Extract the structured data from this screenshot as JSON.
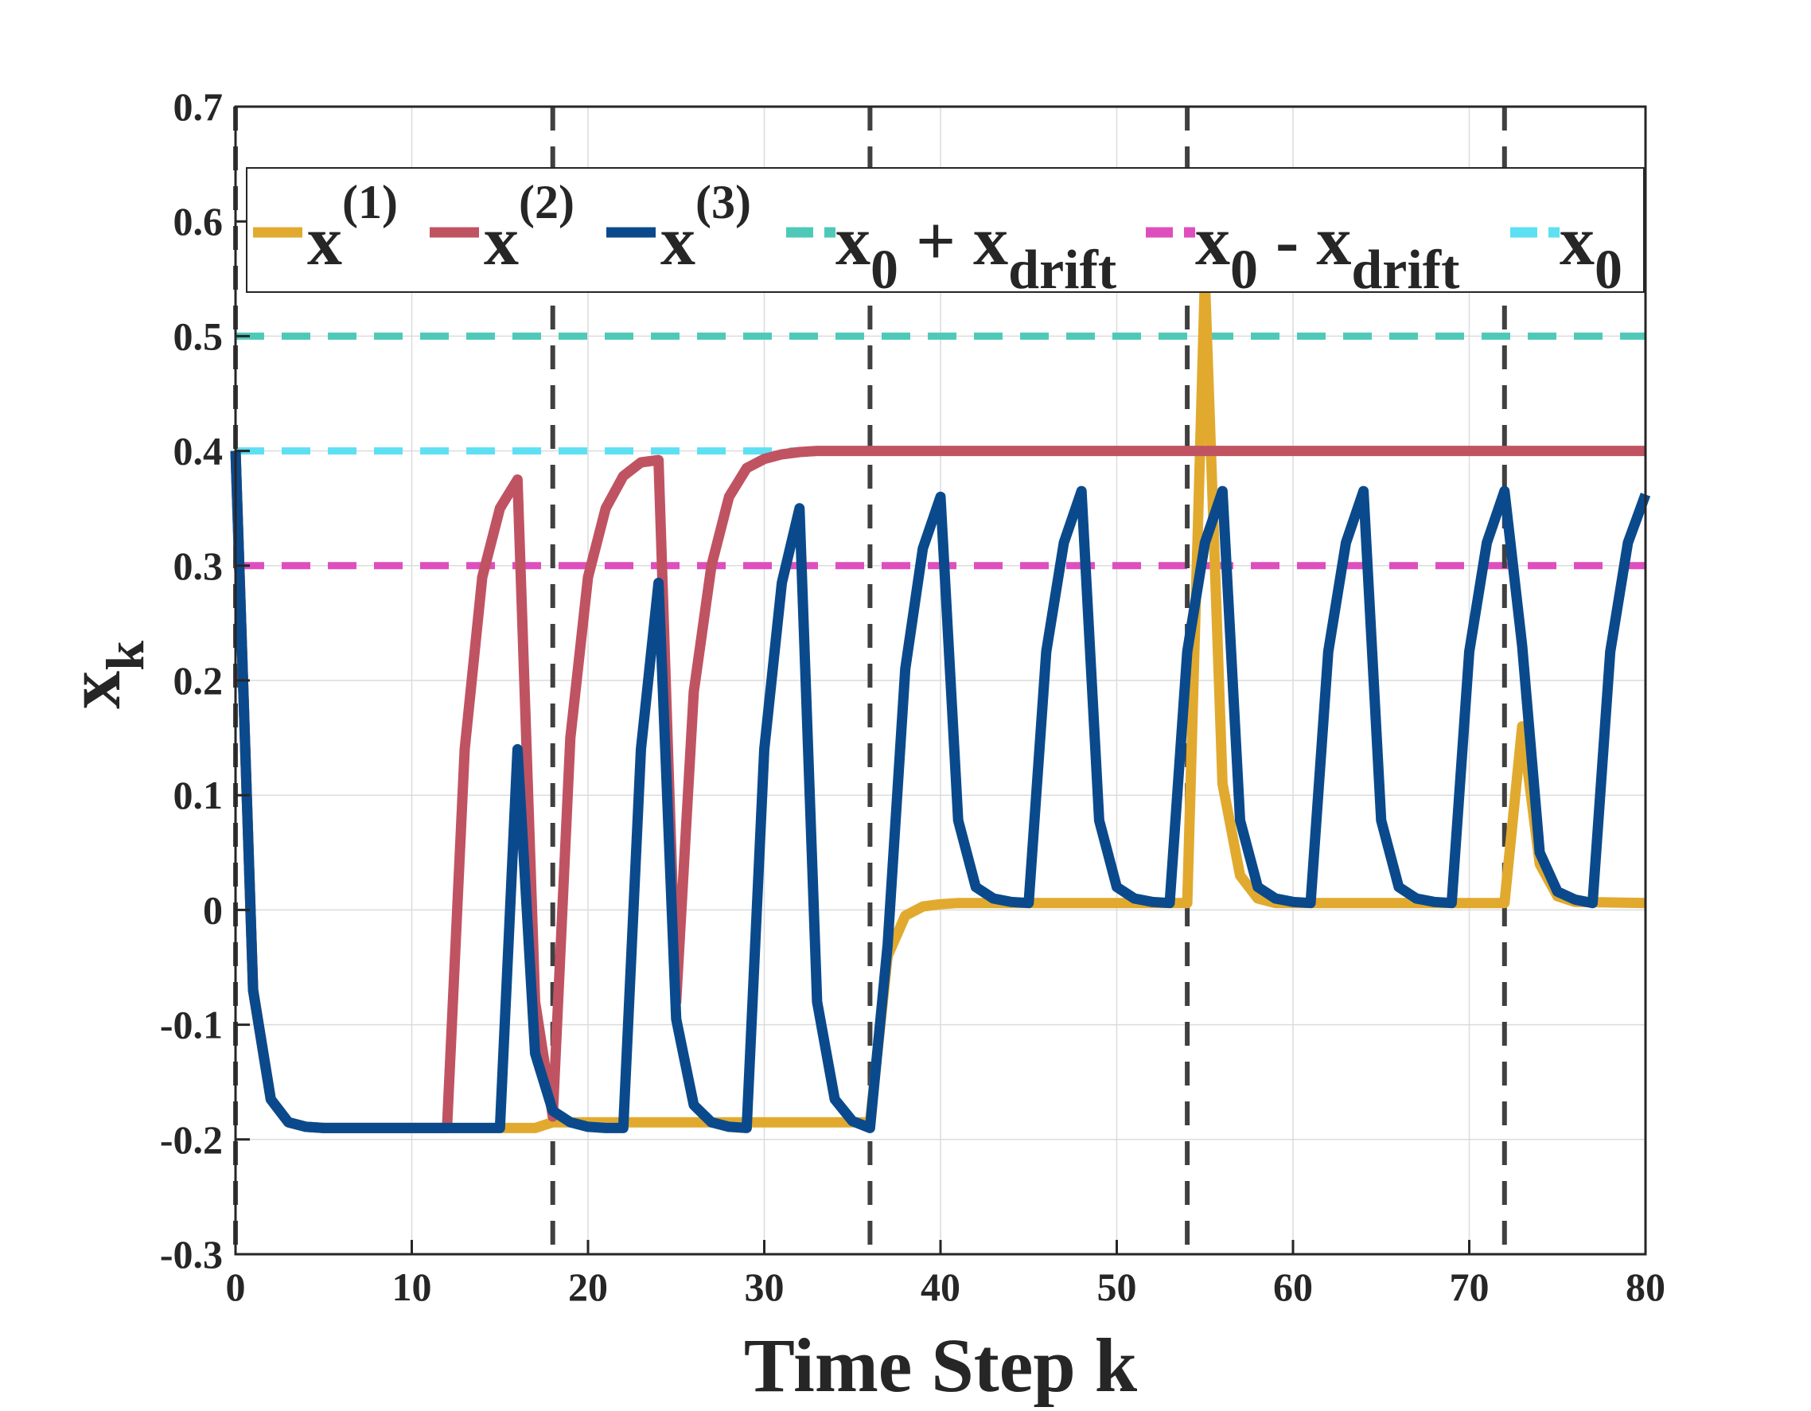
{
  "chart_data": {
    "type": "line",
    "title": "",
    "xlabel": "Time Step k",
    "ylabel": {
      "base": "x",
      "sub": "k"
    },
    "xlim": [
      0,
      80
    ],
    "ylim": [
      -0.3,
      0.7
    ],
    "xticks": [
      0,
      10,
      20,
      30,
      40,
      50,
      60,
      70,
      80
    ],
    "yticks": [
      -0.3,
      -0.2,
      -0.1,
      0,
      0.1,
      0.2,
      0.3,
      0.4,
      0.5,
      0.6,
      0.7
    ],
    "xtick_labels": [
      "0",
      "10",
      "20",
      "30",
      "40",
      "50",
      "60",
      "70",
      "80"
    ],
    "ytick_labels": [
      "-0.3",
      "-0.2",
      "-0.1",
      "0",
      "0.1",
      "0.2",
      "0.3",
      "0.4",
      "0.5",
      "0.6",
      "0.7"
    ],
    "grid": true,
    "legend_position": "top",
    "vertical_lines": [
      0,
      18,
      36,
      54,
      72
    ],
    "vertical_line_color": "#404040",
    "reference_lines": [
      {
        "name": "x0 + xdrift",
        "y": 0.5,
        "color": "#4ec9b8"
      },
      {
        "name": "x0 - xdrift",
        "y": 0.3,
        "color": "#de4fbd"
      },
      {
        "name": "x0",
        "y": 0.4,
        "color": "#5ee0f3"
      }
    ],
    "legend": [
      {
        "key": "x1",
        "base": "x",
        "sup": "(1)",
        "color": "#e1aa2f",
        "style": "solid"
      },
      {
        "key": "x2",
        "base": "x",
        "sup": "(2)",
        "color": "#c05362",
        "style": "solid"
      },
      {
        "key": "x3",
        "base": "x",
        "sup": "(3)",
        "color": "#0a4a8c",
        "style": "solid"
      },
      {
        "key": "upper",
        "base": "x",
        "sub": "0",
        "mid": " + ",
        "base2": "x",
        "sub2": "drift",
        "color": "#4ec9b8",
        "style": "dashed"
      },
      {
        "key": "lower",
        "base": "x",
        "sub": "0",
        "mid": " - ",
        "base2": "x",
        "sub2": "drift",
        "color": "#de4fbd",
        "style": "dashed"
      },
      {
        "key": "x0",
        "base": "x",
        "sub": "0",
        "color": "#5ee0f3",
        "style": "dashed"
      }
    ],
    "series": [
      {
        "name": "x(1)",
        "color": "#e1aa2f",
        "points": [
          [
            0,
            0.4
          ],
          [
            1,
            -0.07
          ],
          [
            2,
            -0.165
          ],
          [
            3,
            -0.185
          ],
          [
            4,
            -0.189
          ],
          [
            5,
            -0.19
          ],
          [
            12,
            -0.19
          ],
          [
            15,
            -0.19
          ],
          [
            16,
            -0.19
          ],
          [
            17,
            -0.19
          ],
          [
            18,
            -0.185
          ],
          [
            36,
            -0.185
          ],
          [
            37,
            -0.04
          ],
          [
            38,
            -0.005
          ],
          [
            39,
            0.003
          ],
          [
            40,
            0.005
          ],
          [
            41,
            0.006
          ],
          [
            54,
            0.006
          ],
          [
            55,
            0.55
          ],
          [
            56,
            0.11
          ],
          [
            57,
            0.03
          ],
          [
            58,
            0.01
          ],
          [
            59,
            0.006
          ],
          [
            72,
            0.006
          ],
          [
            73,
            0.16
          ],
          [
            74,
            0.04
          ],
          [
            75,
            0.012
          ],
          [
            76,
            0.007
          ],
          [
            80,
            0.006
          ]
        ]
      },
      {
        "name": "x(2)",
        "color": "#c05362",
        "points": [
          [
            0,
            0.4
          ],
          [
            1,
            -0.07
          ],
          [
            2,
            -0.165
          ],
          [
            3,
            -0.185
          ],
          [
            4,
            -0.189
          ],
          [
            5,
            -0.19
          ],
          [
            12,
            -0.19
          ],
          [
            13,
            0.14
          ],
          [
            14,
            0.29
          ],
          [
            15,
            0.35
          ],
          [
            16,
            0.375
          ],
          [
            17,
            -0.08
          ],
          [
            18,
            -0.18
          ],
          [
            19,
            0.15
          ],
          [
            20,
            0.29
          ],
          [
            21,
            0.35
          ],
          [
            22,
            0.378
          ],
          [
            23,
            0.39
          ],
          [
            24,
            0.392
          ],
          [
            25,
            -0.08
          ],
          [
            26,
            0.19
          ],
          [
            27,
            0.3
          ],
          [
            28,
            0.36
          ],
          [
            29,
            0.385
          ],
          [
            30,
            0.393
          ],
          [
            31,
            0.397
          ],
          [
            32,
            0.399
          ],
          [
            33,
            0.4
          ],
          [
            80,
            0.4
          ]
        ]
      },
      {
        "name": "x(3)",
        "color": "#0a4a8c",
        "points": [
          [
            0,
            0.4
          ],
          [
            1,
            -0.07
          ],
          [
            2,
            -0.165
          ],
          [
            3,
            -0.185
          ],
          [
            4,
            -0.189
          ],
          [
            5,
            -0.19
          ],
          [
            15,
            -0.19
          ],
          [
            16,
            0.14
          ],
          [
            17,
            -0.125
          ],
          [
            18,
            -0.175
          ],
          [
            19,
            -0.185
          ],
          [
            20,
            -0.189
          ],
          [
            21,
            -0.19
          ],
          [
            22,
            -0.19
          ],
          [
            23,
            0.14
          ],
          [
            24,
            0.285
          ],
          [
            25,
            -0.095
          ],
          [
            26,
            -0.17
          ],
          [
            27,
            -0.185
          ],
          [
            28,
            -0.189
          ],
          [
            29,
            -0.19
          ],
          [
            30,
            0.14
          ],
          [
            31,
            0.285
          ],
          [
            32,
            0.35
          ],
          [
            33,
            -0.08
          ],
          [
            34,
            -0.165
          ],
          [
            35,
            -0.184
          ],
          [
            36,
            -0.19
          ],
          [
            37,
            -0.03
          ],
          [
            38,
            0.21
          ],
          [
            39,
            0.315
          ],
          [
            40,
            0.36
          ],
          [
            41,
            0.078
          ],
          [
            42,
            0.02
          ],
          [
            43,
            0.01
          ],
          [
            44,
            0.007
          ],
          [
            45,
            0.006
          ],
          [
            46,
            0.225
          ],
          [
            47,
            0.32
          ],
          [
            48,
            0.365
          ],
          [
            49,
            0.078
          ],
          [
            50,
            0.02
          ],
          [
            51,
            0.01
          ],
          [
            52,
            0.007
          ],
          [
            53,
            0.006
          ],
          [
            54,
            0.225
          ],
          [
            55,
            0.32
          ],
          [
            56,
            0.365
          ],
          [
            57,
            0.078
          ],
          [
            58,
            0.02
          ],
          [
            59,
            0.01
          ],
          [
            60,
            0.007
          ],
          [
            61,
            0.006
          ],
          [
            62,
            0.225
          ],
          [
            63,
            0.32
          ],
          [
            64,
            0.365
          ],
          [
            65,
            0.078
          ],
          [
            66,
            0.02
          ],
          [
            67,
            0.01
          ],
          [
            68,
            0.007
          ],
          [
            69,
            0.006
          ],
          [
            70,
            0.225
          ],
          [
            71,
            0.32
          ],
          [
            72,
            0.365
          ],
          [
            73,
            0.23
          ],
          [
            74,
            0.05
          ],
          [
            75,
            0.016
          ],
          [
            76,
            0.009
          ],
          [
            77,
            0.006
          ],
          [
            78,
            0.225
          ],
          [
            79,
            0.32
          ],
          [
            80,
            0.362
          ]
        ]
      }
    ]
  }
}
